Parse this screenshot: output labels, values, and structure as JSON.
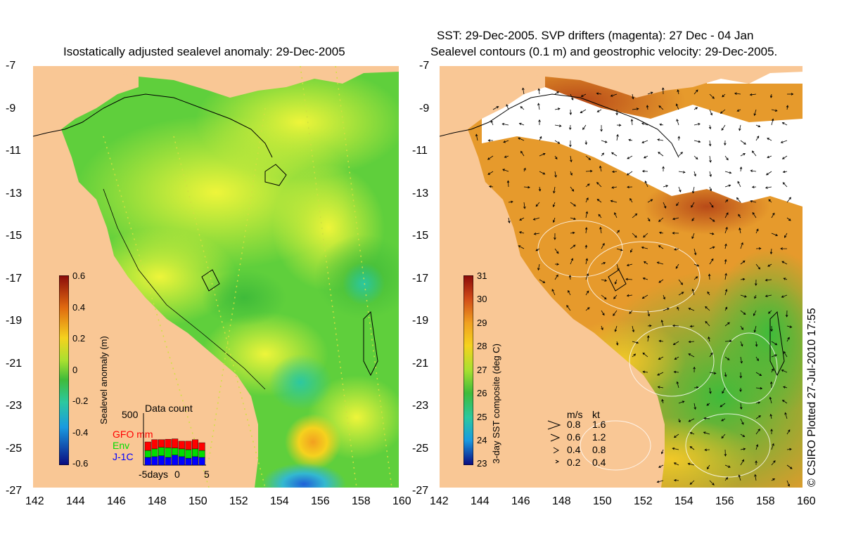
{
  "left_panel": {
    "title": "Isostatically adjusted sealevel anomaly: 29-Dec-2005",
    "colorbar": {
      "label": "Sealevel anomaly (m)",
      "ticks": [
        "0.6",
        "0.4",
        "0.2",
        "0",
        "-0.2",
        "-0.4",
        "-0.6"
      ],
      "range": [
        -0.6,
        0.6
      ]
    },
    "data_count": {
      "title": "Data count",
      "max_label": "500",
      "series": [
        {
          "name": "GFO mm",
          "color": "#ff0000"
        },
        {
          "name": "Env",
          "color": "#00dd00"
        },
        {
          "name": "J-1C",
          "color": "#0000ff"
        }
      ],
      "x_labels": [
        "-5days",
        "0",
        "5"
      ]
    }
  },
  "right_panel": {
    "title_line1": "SST: 29-Dec-2005. SVP drifters (magenta): 27 Dec - 04 Jan",
    "title_line2": "Sealevel contours (0.1 m) and geostrophic velocity: 29-Dec-2005.",
    "colorbar": {
      "label": "3-day SST composite (deg C)",
      "ticks": [
        "31",
        "30",
        "29",
        "28",
        "27",
        "26",
        "25",
        "24",
        "23"
      ],
      "range": [
        23,
        31
      ]
    },
    "velocity_legend": {
      "header_ms": "m/s",
      "header_kt": "kt",
      "rows": [
        {
          "ms": "0.8",
          "kt": "1.6"
        },
        {
          "ms": "0.6",
          "kt": "1.2"
        },
        {
          "ms": "0.4",
          "kt": "0.8"
        },
        {
          "ms": "0.2",
          "kt": "0.4"
        }
      ]
    }
  },
  "axes": {
    "y_labels": [
      "-7",
      "-9",
      "-11",
      "-13",
      "-15",
      "-17",
      "-19",
      "-21",
      "-23",
      "-25",
      "-27"
    ],
    "x_labels": [
      "142",
      "144",
      "146",
      "148",
      "150",
      "152",
      "154",
      "156",
      "158",
      "160"
    ]
  },
  "credit": "© CSIRO Plotted 27-Jul-2010 17:55",
  "colors": {
    "land": "#f9c795",
    "sea_green": "#5fcf3c",
    "sea_yellow": "#e8f03a",
    "sst_orange": "#e69a2c",
    "cloud": "#ffffff"
  }
}
